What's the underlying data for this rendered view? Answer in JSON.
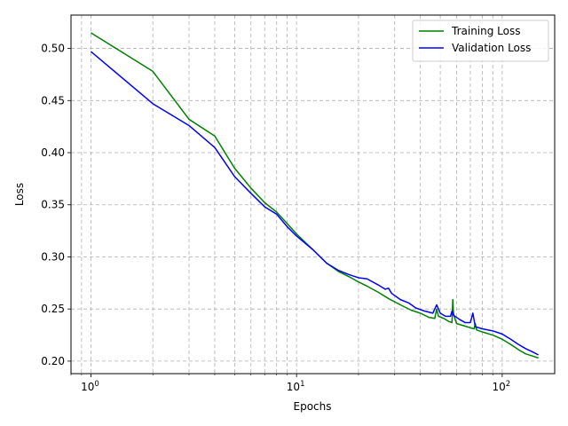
{
  "chart_data": {
    "type": "line",
    "title": "",
    "xlabel": "Epochs",
    "ylabel": "Loss",
    "xscale": "log",
    "xlim": [
      0.8,
      180
    ],
    "ylim": [
      0.188,
      0.532
    ],
    "xticks": [
      {
        "value": 1,
        "base": "10",
        "exp": "0"
      },
      {
        "value": 10,
        "base": "10",
        "exp": "1"
      },
      {
        "value": 100,
        "base": "10",
        "exp": "2"
      }
    ],
    "yticks": [
      {
        "value": 0.2,
        "label": "0.20"
      },
      {
        "value": 0.25,
        "label": "0.25"
      },
      {
        "value": 0.3,
        "label": "0.30"
      },
      {
        "value": 0.35,
        "label": "0.35"
      },
      {
        "value": 0.4,
        "label": "0.40"
      },
      {
        "value": 0.45,
        "label": "0.45"
      },
      {
        "value": 0.5,
        "label": "0.50"
      }
    ],
    "grid": true,
    "legend_position": "upper-right",
    "series": [
      {
        "name": "Training Loss",
        "color": "#008000",
        "points": [
          [
            1,
            0.515
          ],
          [
            2,
            0.478
          ],
          [
            3,
            0.432
          ],
          [
            4,
            0.416
          ],
          [
            5,
            0.385
          ],
          [
            6,
            0.366
          ],
          [
            7,
            0.352
          ],
          [
            8,
            0.343
          ],
          [
            9,
            0.332
          ],
          [
            10,
            0.322
          ],
          [
            12,
            0.307
          ],
          [
            14,
            0.294
          ],
          [
            16,
            0.286
          ],
          [
            18,
            0.281
          ],
          [
            20,
            0.276
          ],
          [
            22,
            0.272
          ],
          [
            25,
            0.266
          ],
          [
            28,
            0.26
          ],
          [
            32,
            0.254
          ],
          [
            36,
            0.249
          ],
          [
            40,
            0.246
          ],
          [
            44,
            0.242
          ],
          [
            47,
            0.241
          ],
          [
            48,
            0.25
          ],
          [
            49,
            0.243
          ],
          [
            52,
            0.241
          ],
          [
            55,
            0.238
          ],
          [
            57,
            0.237
          ],
          [
            57.5,
            0.259
          ],
          [
            58,
            0.245
          ],
          [
            60,
            0.236
          ],
          [
            65,
            0.234
          ],
          [
            70,
            0.232
          ],
          [
            73,
            0.231
          ],
          [
            74,
            0.236
          ],
          [
            75,
            0.23
          ],
          [
            80,
            0.228
          ],
          [
            90,
            0.225
          ],
          [
            100,
            0.221
          ],
          [
            110,
            0.216
          ],
          [
            120,
            0.211
          ],
          [
            130,
            0.207
          ],
          [
            140,
            0.205
          ],
          [
            150,
            0.203
          ]
        ]
      },
      {
        "name": "Validation Loss",
        "color": "#0000ff",
        "points": [
          [
            1,
            0.497
          ],
          [
            2,
            0.447
          ],
          [
            3,
            0.426
          ],
          [
            4,
            0.405
          ],
          [
            5,
            0.377
          ],
          [
            6,
            0.361
          ],
          [
            7,
            0.348
          ],
          [
            8,
            0.341
          ],
          [
            9,
            0.329
          ],
          [
            10,
            0.32
          ],
          [
            12,
            0.307
          ],
          [
            14,
            0.294
          ],
          [
            16,
            0.287
          ],
          [
            18,
            0.283
          ],
          [
            20,
            0.28
          ],
          [
            22,
            0.279
          ],
          [
            25,
            0.273
          ],
          [
            27,
            0.269
          ],
          [
            28,
            0.27
          ],
          [
            29,
            0.265
          ],
          [
            32,
            0.259
          ],
          [
            35,
            0.256
          ],
          [
            38,
            0.251
          ],
          [
            42,
            0.248
          ],
          [
            46,
            0.246
          ],
          [
            48,
            0.254
          ],
          [
            50,
            0.246
          ],
          [
            53,
            0.243
          ],
          [
            56,
            0.243
          ],
          [
            57,
            0.248
          ],
          [
            58,
            0.244
          ],
          [
            62,
            0.24
          ],
          [
            66,
            0.237
          ],
          [
            70,
            0.237
          ],
          [
            72,
            0.246
          ],
          [
            74,
            0.233
          ],
          [
            80,
            0.231
          ],
          [
            90,
            0.229
          ],
          [
            100,
            0.226
          ],
          [
            110,
            0.221
          ],
          [
            120,
            0.216
          ],
          [
            130,
            0.212
          ],
          [
            140,
            0.209
          ],
          [
            150,
            0.206
          ]
        ]
      }
    ]
  }
}
